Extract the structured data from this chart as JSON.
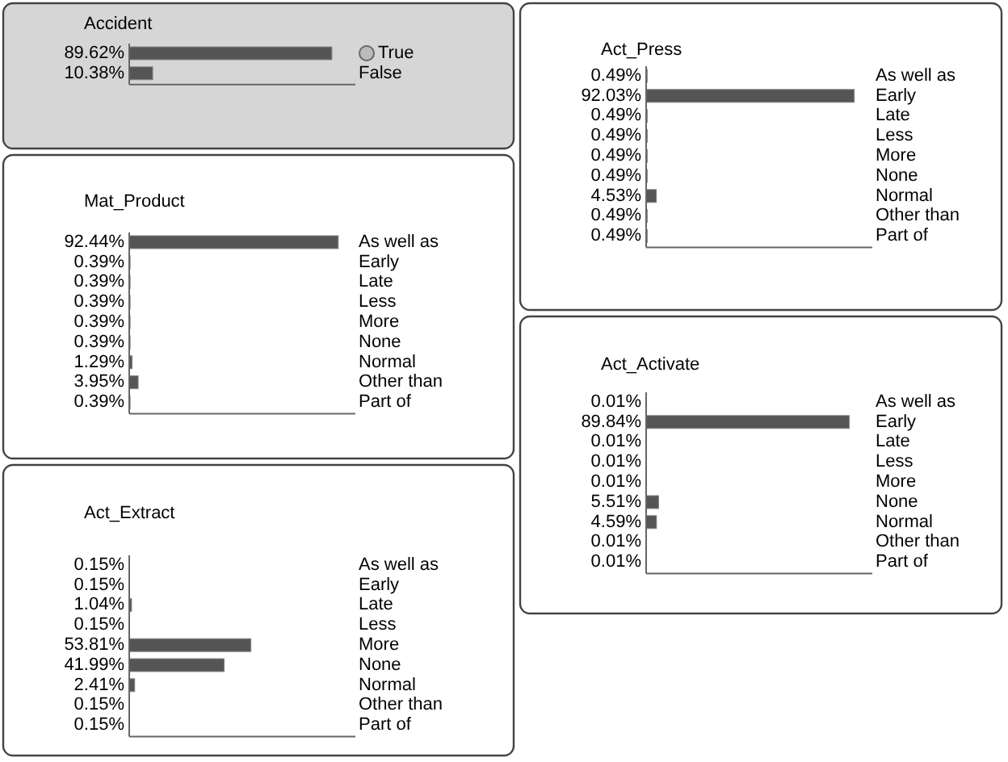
{
  "chart_data": [
    {
      "type": "bar",
      "orientation": "horizontal",
      "title": "Accident",
      "categories": [
        "True",
        "False"
      ],
      "values": [
        89.62,
        10.38
      ],
      "value_labels": [
        "89.62%",
        "10.38%"
      ],
      "color": "#555555",
      "xlim": [
        0,
        100
      ]
    },
    {
      "type": "bar",
      "orientation": "horizontal",
      "title": "Mat_Product",
      "categories": [
        "As well as",
        "Early",
        "Late",
        "Less",
        "More",
        "None",
        "Normal",
        "Other than",
        "Part of"
      ],
      "values": [
        92.44,
        0.39,
        0.39,
        0.39,
        0.39,
        0.39,
        1.29,
        3.95,
        0.39
      ],
      "value_labels": [
        "92.44%",
        "0.39%",
        "0.39%",
        "0.39%",
        "0.39%",
        "0.39%",
        "1.29%",
        "3.95%",
        "0.39%"
      ],
      "color": "#555555",
      "xlim": [
        0,
        100
      ]
    },
    {
      "type": "bar",
      "orientation": "horizontal",
      "title": "Act_Extract",
      "categories": [
        "As well as",
        "Early",
        "Late",
        "Less",
        "More",
        "None",
        "Normal",
        "Other than",
        "Part of"
      ],
      "values": [
        0.15,
        0.15,
        1.04,
        0.15,
        53.81,
        41.99,
        2.41,
        0.15,
        0.15
      ],
      "value_labels": [
        "0.15%",
        "0.15%",
        "1.04%",
        "0.15%",
        "53.81%",
        "41.99%",
        "2.41%",
        "0.15%",
        "0.15%"
      ],
      "color": "#555555",
      "xlim": [
        0,
        100
      ]
    },
    {
      "type": "bar",
      "orientation": "horizontal",
      "title": "Act_Press",
      "categories": [
        "As well as",
        "Early",
        "Late",
        "Less",
        "More",
        "None",
        "Normal",
        "Other than",
        "Part of"
      ],
      "values": [
        0.49,
        92.03,
        0.49,
        0.49,
        0.49,
        0.49,
        4.53,
        0.49,
        0.49
      ],
      "value_labels": [
        "0.49%",
        "92.03%",
        "0.49%",
        "0.49%",
        "0.49%",
        "0.49%",
        "4.53%",
        "0.49%",
        "0.49%"
      ],
      "color": "#555555",
      "xlim": [
        0,
        100
      ]
    },
    {
      "type": "bar",
      "orientation": "horizontal",
      "title": "Act_Activate",
      "categories": [
        "As well as",
        "Early",
        "Late",
        "Less",
        "More",
        "None",
        "Normal",
        "Other than",
        "Part of"
      ],
      "values": [
        0.01,
        89.84,
        0.01,
        0.01,
        0.01,
        5.51,
        4.59,
        0.01,
        0.01
      ],
      "value_labels": [
        "0.01%",
        "89.84%",
        "0.01%",
        "0.01%",
        "0.01%",
        "5.51%",
        "4.59%",
        "0.01%",
        "0.01%"
      ],
      "color": "#555555",
      "xlim": [
        0,
        100
      ]
    }
  ]
}
